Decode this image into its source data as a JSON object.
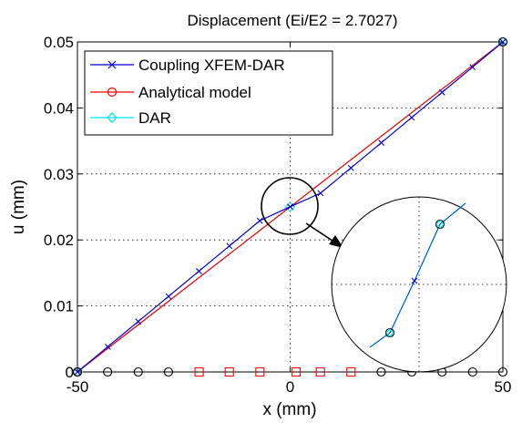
{
  "chart_data": {
    "type": "line",
    "title": "Displacement  (Ei/E2 = 2.7027)",
    "xlabel": "x (mm)",
    "ylabel": "u (mm)",
    "xlim": [
      -50,
      50
    ],
    "ylim": [
      0,
      0.05
    ],
    "xticks": [
      -50,
      0,
      50
    ],
    "yticks": [
      0,
      0.01,
      0.02,
      0.03,
      0.04,
      0.05
    ],
    "xtick_labels": [
      "-50",
      "0",
      "50"
    ],
    "ytick_labels": [
      "0",
      "0.01",
      "0.02",
      "0.03",
      "0.04",
      "0.05"
    ],
    "grid": true,
    "legend_position": "top-left",
    "series": [
      {
        "name": "Coupling XFEM-DAR",
        "color": "#0000cc",
        "marker": "x",
        "x": [
          -50,
          -42.86,
          -35.71,
          -28.57,
          -21.43,
          -14.29,
          -7.14,
          0,
          7.14,
          14.29,
          21.43,
          28.57,
          35.71,
          42.86,
          50
        ],
        "y": [
          0,
          0.00382,
          0.00764,
          0.01145,
          0.01527,
          0.01909,
          0.02291,
          0.02503,
          0.02709,
          0.03091,
          0.03473,
          0.03855,
          0.04236,
          0.04618,
          0.05
        ]
      },
      {
        "name": "Analytical model",
        "color": "#ff0000",
        "marker": "o",
        "x": [
          -50,
          50
        ],
        "y": [
          0,
          0.05
        ]
      },
      {
        "name": "DAR",
        "color": "#00e5ee",
        "marker": "diamond",
        "x": [
          -50,
          0,
          50
        ],
        "y": [
          0,
          0.025,
          0.05
        ]
      }
    ],
    "bottom_markers": {
      "black_circles_x": [
        -50,
        -42.9,
        -35.7,
        -28.6,
        21.4,
        28.6,
        35.7,
        42.9,
        50
      ],
      "red_squares_x": [
        -21.4,
        -14.3,
        -7.1,
        1.4,
        7.1,
        14.3
      ]
    },
    "zoom_inset": {
      "center": [
        0,
        0.025
      ]
    }
  }
}
